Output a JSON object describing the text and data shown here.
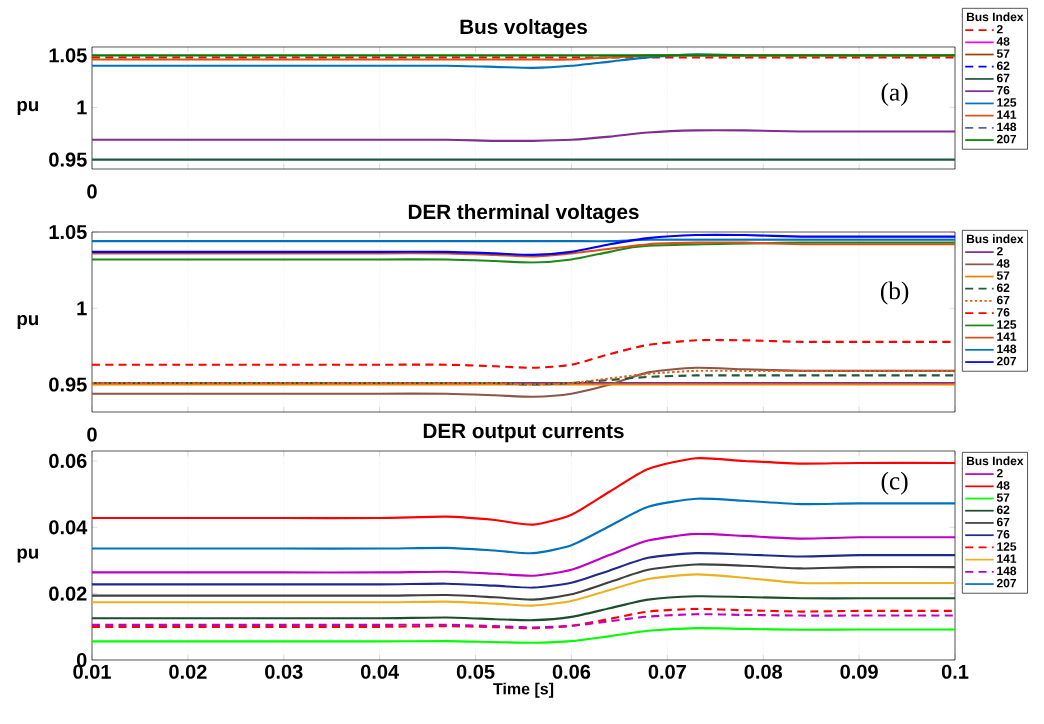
{
  "chart_data": [
    {
      "type": "line",
      "title": "Bus voltages",
      "ylabel": "pu",
      "legend_title": "Bus Index",
      "legend": "right",
      "grid": "x",
      "tick_labels": "y",
      "marker": "none",
      "annotations": [
        "(a)",
        "0"
      ],
      "x": [
        0.01,
        0.02,
        0.03,
        0.04,
        0.047,
        0.052,
        0.056,
        0.06,
        0.064,
        0.068,
        0.073,
        0.078,
        0.084,
        0.09,
        0.1
      ],
      "xlim": [
        0.01,
        0.1
      ],
      "xticks": [
        0.01,
        0.02,
        0.03,
        0.04,
        0.05,
        0.06,
        0.07,
        0.08,
        0.09,
        0.1
      ],
      "ylim": [
        0.941,
        1.058
      ],
      "yticks": [
        0.95,
        1,
        1.05
      ],
      "series": [
        {
          "name": "2",
          "color": "#ff0000",
          "line_style": "dashed",
          "values": [
            1.048,
            1.048,
            1.048,
            1.048,
            1.048,
            1.048,
            1.048,
            1.048,
            1.048,
            1.048,
            1.048,
            1.048,
            1.048,
            1.048,
            1.048
          ]
        },
        {
          "name": "48",
          "color": "#ff00ff",
          "line_style": "solid",
          "values": [
            null,
            null,
            null,
            null,
            null,
            null,
            null,
            null,
            null,
            null,
            null,
            null,
            null,
            null,
            null
          ]
        },
        {
          "name": "57",
          "color": "#a0400a",
          "line_style": "solid",
          "values": [
            null,
            null,
            null,
            null,
            null,
            null,
            null,
            null,
            null,
            null,
            null,
            null,
            null,
            null,
            null
          ]
        },
        {
          "name": "62",
          "color": "#0000ff",
          "line_style": "dashed",
          "values": [
            null,
            null,
            null,
            null,
            null,
            null,
            null,
            null,
            null,
            null,
            null,
            null,
            null,
            null,
            null
          ]
        },
        {
          "name": "67",
          "color": "#1e5a3c",
          "line_style": "solid",
          "values": [
            0.95,
            0.95,
            0.95,
            0.95,
            0.95,
            0.95,
            0.95,
            0.95,
            0.95,
            0.95,
            0.95,
            0.95,
            0.95,
            0.95,
            0.95
          ]
        },
        {
          "name": "76",
          "color": "#7e2f8e",
          "line_style": "solid",
          "values": [
            0.969,
            0.969,
            0.969,
            0.969,
            0.969,
            0.968,
            0.968,
            0.969,
            0.972,
            0.976,
            0.978,
            0.978,
            0.977,
            0.977,
            0.977
          ]
        },
        {
          "name": "125",
          "color": "#0072bd",
          "line_style": "solid",
          "values": [
            1.04,
            1.04,
            1.04,
            1.04,
            1.04,
            1.039,
            1.038,
            1.04,
            1.044,
            1.048,
            1.051,
            1.05,
            null,
            null,
            null
          ]
        },
        {
          "name": "141",
          "color": "#d95319",
          "line_style": "solid",
          "values": [
            1.046,
            1.046,
            1.046,
            1.046,
            1.046,
            1.046,
            1.046,
            1.046,
            1.048,
            1.05,
            1.05,
            1.05,
            1.05,
            1.05,
            1.05
          ]
        },
        {
          "name": "148",
          "color": "#4a6a9a",
          "line_style": "dashed",
          "values": [
            null,
            null,
            null,
            null,
            null,
            null,
            null,
            null,
            null,
            null,
            null,
            null,
            null,
            null,
            null
          ]
        },
        {
          "name": "207",
          "color": "#008000",
          "line_style": "solid",
          "values": [
            1.05,
            1.05,
            1.05,
            1.05,
            1.05,
            1.05,
            1.05,
            1.05,
            1.05,
            1.05,
            1.05,
            1.05,
            1.05,
            1.05,
            1.05
          ]
        }
      ]
    },
    {
      "type": "line",
      "title": "DER therminal  voltages",
      "ylabel": "pu",
      "legend_title": "Bus index",
      "legend": "right",
      "grid": "x",
      "tick_labels": "y",
      "marker": "none",
      "annotations": [
        "(b)",
        "0"
      ],
      "x": [
        0.01,
        0.02,
        0.03,
        0.04,
        0.047,
        0.052,
        0.056,
        0.06,
        0.064,
        0.068,
        0.073,
        0.078,
        0.084,
        0.09,
        0.1
      ],
      "xlim": [
        0.01,
        0.1
      ],
      "xticks": [
        0.01,
        0.02,
        0.03,
        0.04,
        0.05,
        0.06,
        0.07,
        0.08,
        0.09,
        0.1
      ],
      "ylim": [
        0.932,
        1.05
      ],
      "yticks": [
        0.95,
        1,
        1.05
      ],
      "series": [
        {
          "name": "2",
          "color": "#7e2f8e",
          "line_style": "solid",
          "values": [
            0.951,
            0.951,
            0.951,
            0.951,
            0.951,
            0.951,
            0.951,
            0.951,
            0.951,
            0.951,
            0.951,
            0.951,
            0.951,
            0.951,
            0.951
          ]
        },
        {
          "name": "48",
          "color": "#8c564b",
          "line_style": "solid",
          "values": [
            0.944,
            0.944,
            0.944,
            0.944,
            0.944,
            0.943,
            0.942,
            0.944,
            0.95,
            0.958,
            0.961,
            0.96,
            0.959,
            0.959,
            0.959
          ]
        },
        {
          "name": "57",
          "color": "#f08000",
          "line_style": "solid",
          "values": [
            0.95,
            0.95,
            0.95,
            0.95,
            0.95,
            0.95,
            0.95,
            0.95,
            0.95,
            0.95,
            0.95,
            0.95,
            0.95,
            0.95,
            0.95
          ]
        },
        {
          "name": "62",
          "color": "#1e5a3c",
          "line_style": "dashed",
          "values": [
            0.951,
            0.951,
            0.951,
            0.951,
            0.951,
            0.951,
            0.95,
            0.951,
            0.953,
            0.955,
            0.956,
            0.956,
            0.956,
            0.956,
            0.956
          ]
        },
        {
          "name": "67",
          "color": "#e0601a",
          "line_style": "dotted",
          "values": [
            0.951,
            0.951,
            0.951,
            0.951,
            0.951,
            0.951,
            0.95,
            0.951,
            0.954,
            0.957,
            0.959,
            0.959,
            0.959,
            0.959,
            0.959
          ]
        },
        {
          "name": "76",
          "color": "#ff0000",
          "line_style": "dashed",
          "values": [
            0.963,
            0.963,
            0.963,
            0.963,
            0.963,
            0.962,
            0.961,
            0.963,
            0.97,
            0.976,
            0.979,
            0.979,
            0.978,
            0.978,
            0.978
          ]
        },
        {
          "name": "125",
          "color": "#1a8a1a",
          "line_style": "solid",
          "values": [
            1.032,
            1.032,
            1.032,
            1.032,
            1.032,
            1.031,
            1.03,
            1.032,
            1.037,
            1.041,
            null,
            null,
            1.043,
            1.043,
            1.043
          ]
        },
        {
          "name": "141",
          "color": "#d95319",
          "line_style": "solid",
          "values": [
            1.036,
            1.036,
            1.036,
            1.036,
            1.036,
            1.035,
            1.034,
            1.036,
            1.039,
            1.042,
            1.043,
            1.043,
            1.042,
            1.042,
            1.042
          ]
        },
        {
          "name": "148",
          "color": "#0072bd",
          "line_style": "solid",
          "values": [
            1.044,
            1.044,
            1.044,
            1.044,
            1.044,
            1.044,
            1.044,
            1.044,
            1.044,
            1.045,
            1.045,
            1.045,
            1.045,
            1.045,
            1.045
          ]
        },
        {
          "name": "207",
          "color": "#0000ff",
          "line_style": "solid",
          "values": [
            1.037,
            1.037,
            1.037,
            1.037,
            1.037,
            1.036,
            1.035,
            1.037,
            1.042,
            1.046,
            1.048,
            1.048,
            1.047,
            1.047,
            1.047
          ]
        }
      ]
    },
    {
      "type": "line",
      "title": "DER output currents",
      "xlabel": "Time [s]",
      "ylabel": "pu",
      "legend_title": "Bus Index",
      "legend": "right",
      "grid": "x",
      "marker": "none",
      "annotations": [
        "(c)"
      ],
      "x": [
        0.01,
        0.02,
        0.03,
        0.04,
        0.047,
        0.052,
        0.056,
        0.06,
        0.064,
        0.068,
        0.073,
        0.078,
        0.084,
        0.09,
        0.1
      ],
      "xlim": [
        0.01,
        0.1
      ],
      "xticks": [
        0.01,
        0.02,
        0.03,
        0.04,
        0.05,
        0.06,
        0.07,
        0.08,
        0.09,
        0.1
      ],
      "ylim": [
        0,
        0.063
      ],
      "yticks": [
        0,
        0.02,
        0.04,
        0.06
      ],
      "series": [
        {
          "name": "2",
          "color": "#c000c0",
          "line_style": "solid",
          "values": [
            0.0264,
            0.0264,
            0.0264,
            0.0264,
            0.0266,
            0.026,
            0.0254,
            0.0272,
            0.0317,
            0.036,
            0.038,
            0.0374,
            0.0366,
            0.037,
            0.037
          ]
        },
        {
          "name": "48",
          "color": "#ff0000",
          "line_style": "solid",
          "values": [
            0.0428,
            0.0428,
            0.0428,
            0.0428,
            0.0432,
            0.0422,
            0.0408,
            0.0438,
            0.0508,
            0.0576,
            0.0608,
            0.06,
            0.0592,
            0.0594,
            0.0594
          ]
        },
        {
          "name": "57",
          "color": "#00ff00",
          "line_style": "solid",
          "values": [
            0.0056,
            0.0056,
            0.0056,
            0.0056,
            0.0057,
            0.0054,
            0.0052,
            0.0057,
            0.0072,
            0.0088,
            0.0096,
            0.0094,
            0.0091,
            0.0092,
            0.0092
          ]
        },
        {
          "name": "62",
          "color": "#1e4d2b",
          "line_style": "solid",
          "values": [
            0.0126,
            0.0126,
            0.0126,
            0.0126,
            0.0128,
            0.0123,
            0.012,
            0.013,
            0.0156,
            0.0182,
            0.0192,
            0.019,
            0.0186,
            0.0186,
            0.0186
          ]
        },
        {
          "name": "67",
          "color": "#404040",
          "line_style": "solid",
          "values": [
            0.0194,
            0.0194,
            0.0194,
            0.0194,
            0.0196,
            0.0189,
            0.0182,
            0.0198,
            0.0235,
            0.0272,
            0.0288,
            0.0284,
            0.0276,
            0.028,
            0.028
          ]
        },
        {
          "name": "76",
          "color": "#1f2a8a",
          "line_style": "solid",
          "values": [
            0.0228,
            0.0228,
            0.0228,
            0.0228,
            0.023,
            0.0224,
            0.0218,
            0.0233,
            0.027,
            0.0308,
            0.0322,
            0.0318,
            0.0312,
            0.0316,
            0.0316
          ]
        },
        {
          "name": "125",
          "color": "#ff0000",
          "line_style": "dashed",
          "values": [
            0.01,
            0.01,
            0.01,
            0.01,
            0.0102,
            0.0099,
            0.0096,
            0.0103,
            0.0124,
            0.0146,
            0.0154,
            0.015,
            0.0146,
            0.0148,
            0.0148
          ]
        },
        {
          "name": "141",
          "color": "#edb120",
          "line_style": "solid",
          "values": [
            0.0174,
            0.0174,
            0.0174,
            0.0174,
            0.0176,
            0.017,
            0.0164,
            0.0178,
            0.0211,
            0.0244,
            0.0258,
            0.0248,
            0.0232,
            0.0232,
            0.0232
          ]
        },
        {
          "name": "148",
          "color": "#c000c0",
          "line_style": "dashed",
          "values": [
            0.0106,
            0.0106,
            0.0106,
            0.0106,
            0.0106,
            0.0102,
            0.0098,
            0.0103,
            0.0117,
            0.0131,
            0.0138,
            0.0136,
            0.0134,
            0.0134,
            0.0134
          ]
        },
        {
          "name": "207",
          "color": "#0072bd",
          "line_style": "solid",
          "values": [
            0.0336,
            0.0336,
            0.0336,
            0.0336,
            0.0338,
            0.033,
            0.0322,
            0.0346,
            0.0404,
            0.0462,
            0.0486,
            0.048,
            0.047,
            0.0472,
            0.0472
          ]
        }
      ]
    }
  ]
}
